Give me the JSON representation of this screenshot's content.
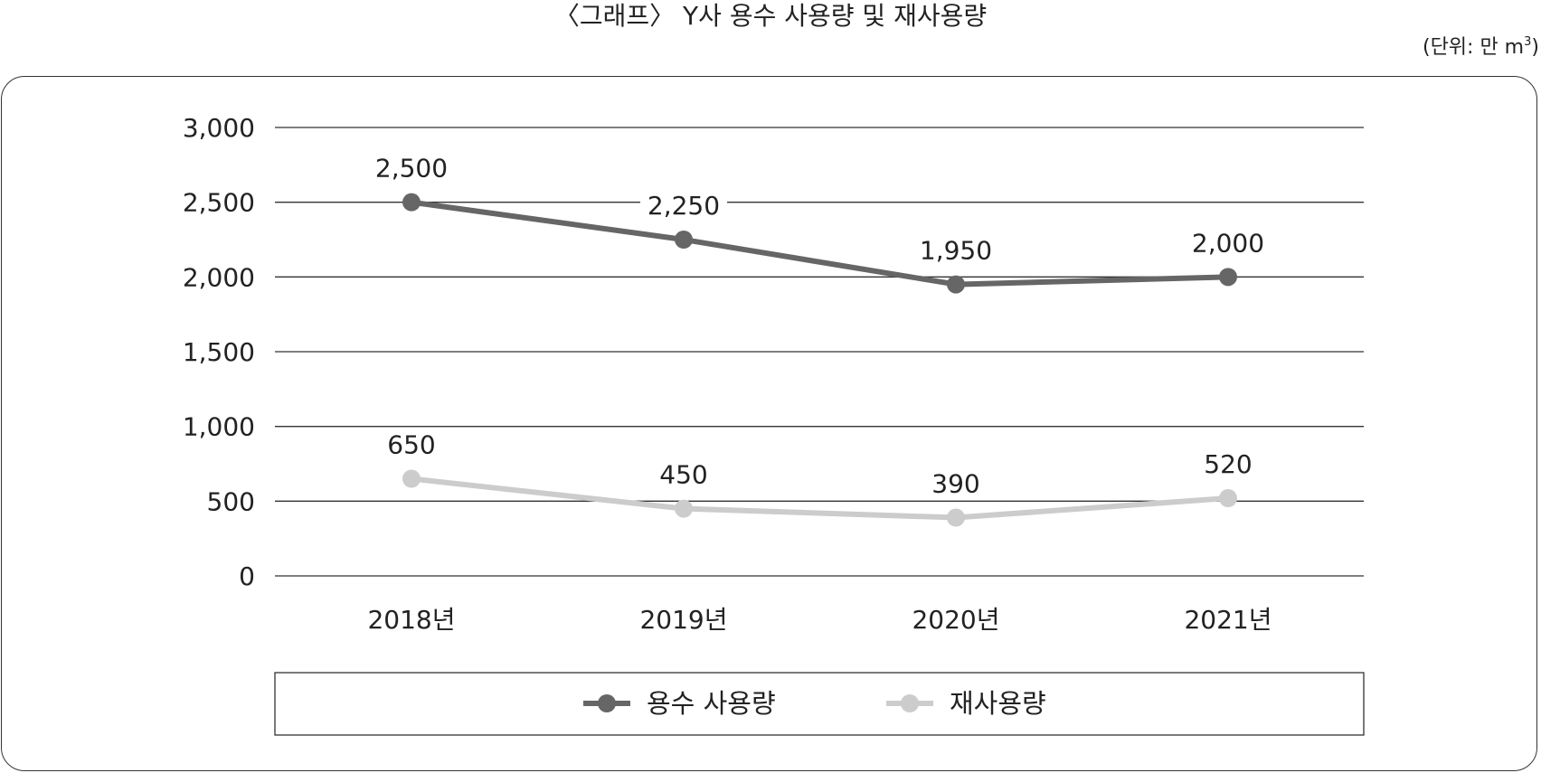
{
  "title": "〈그래프〉 Y사 용수 사용량 및 재사용량",
  "unit": {
    "prefix": "(단위: 만 m",
    "superscript": "3",
    "suffix": ")"
  },
  "chart_data": {
    "type": "line",
    "categories": [
      "2018년",
      "2019년",
      "2020년",
      "2021년"
    ],
    "series": [
      {
        "name": "용수 사용량",
        "values": [
          2500,
          2250,
          1950,
          2000
        ],
        "labels": [
          "2,500",
          "2,250",
          "1,950",
          "2,000"
        ],
        "color": "#666666"
      },
      {
        "name": "재사용량",
        "values": [
          650,
          450,
          390,
          520
        ],
        "labels": [
          "650",
          "450",
          "390",
          "520"
        ],
        "color": "#cccccc"
      }
    ],
    "ylim": [
      0,
      3000
    ],
    "yticks": [
      0,
      500,
      1000,
      1500,
      2000,
      2500,
      3000
    ],
    "ytick_labels": [
      "0",
      "500",
      "1,000",
      "1,500",
      "2,000",
      "2,500",
      "3,000"
    ],
    "grid": true,
    "legend": "bottom"
  }
}
